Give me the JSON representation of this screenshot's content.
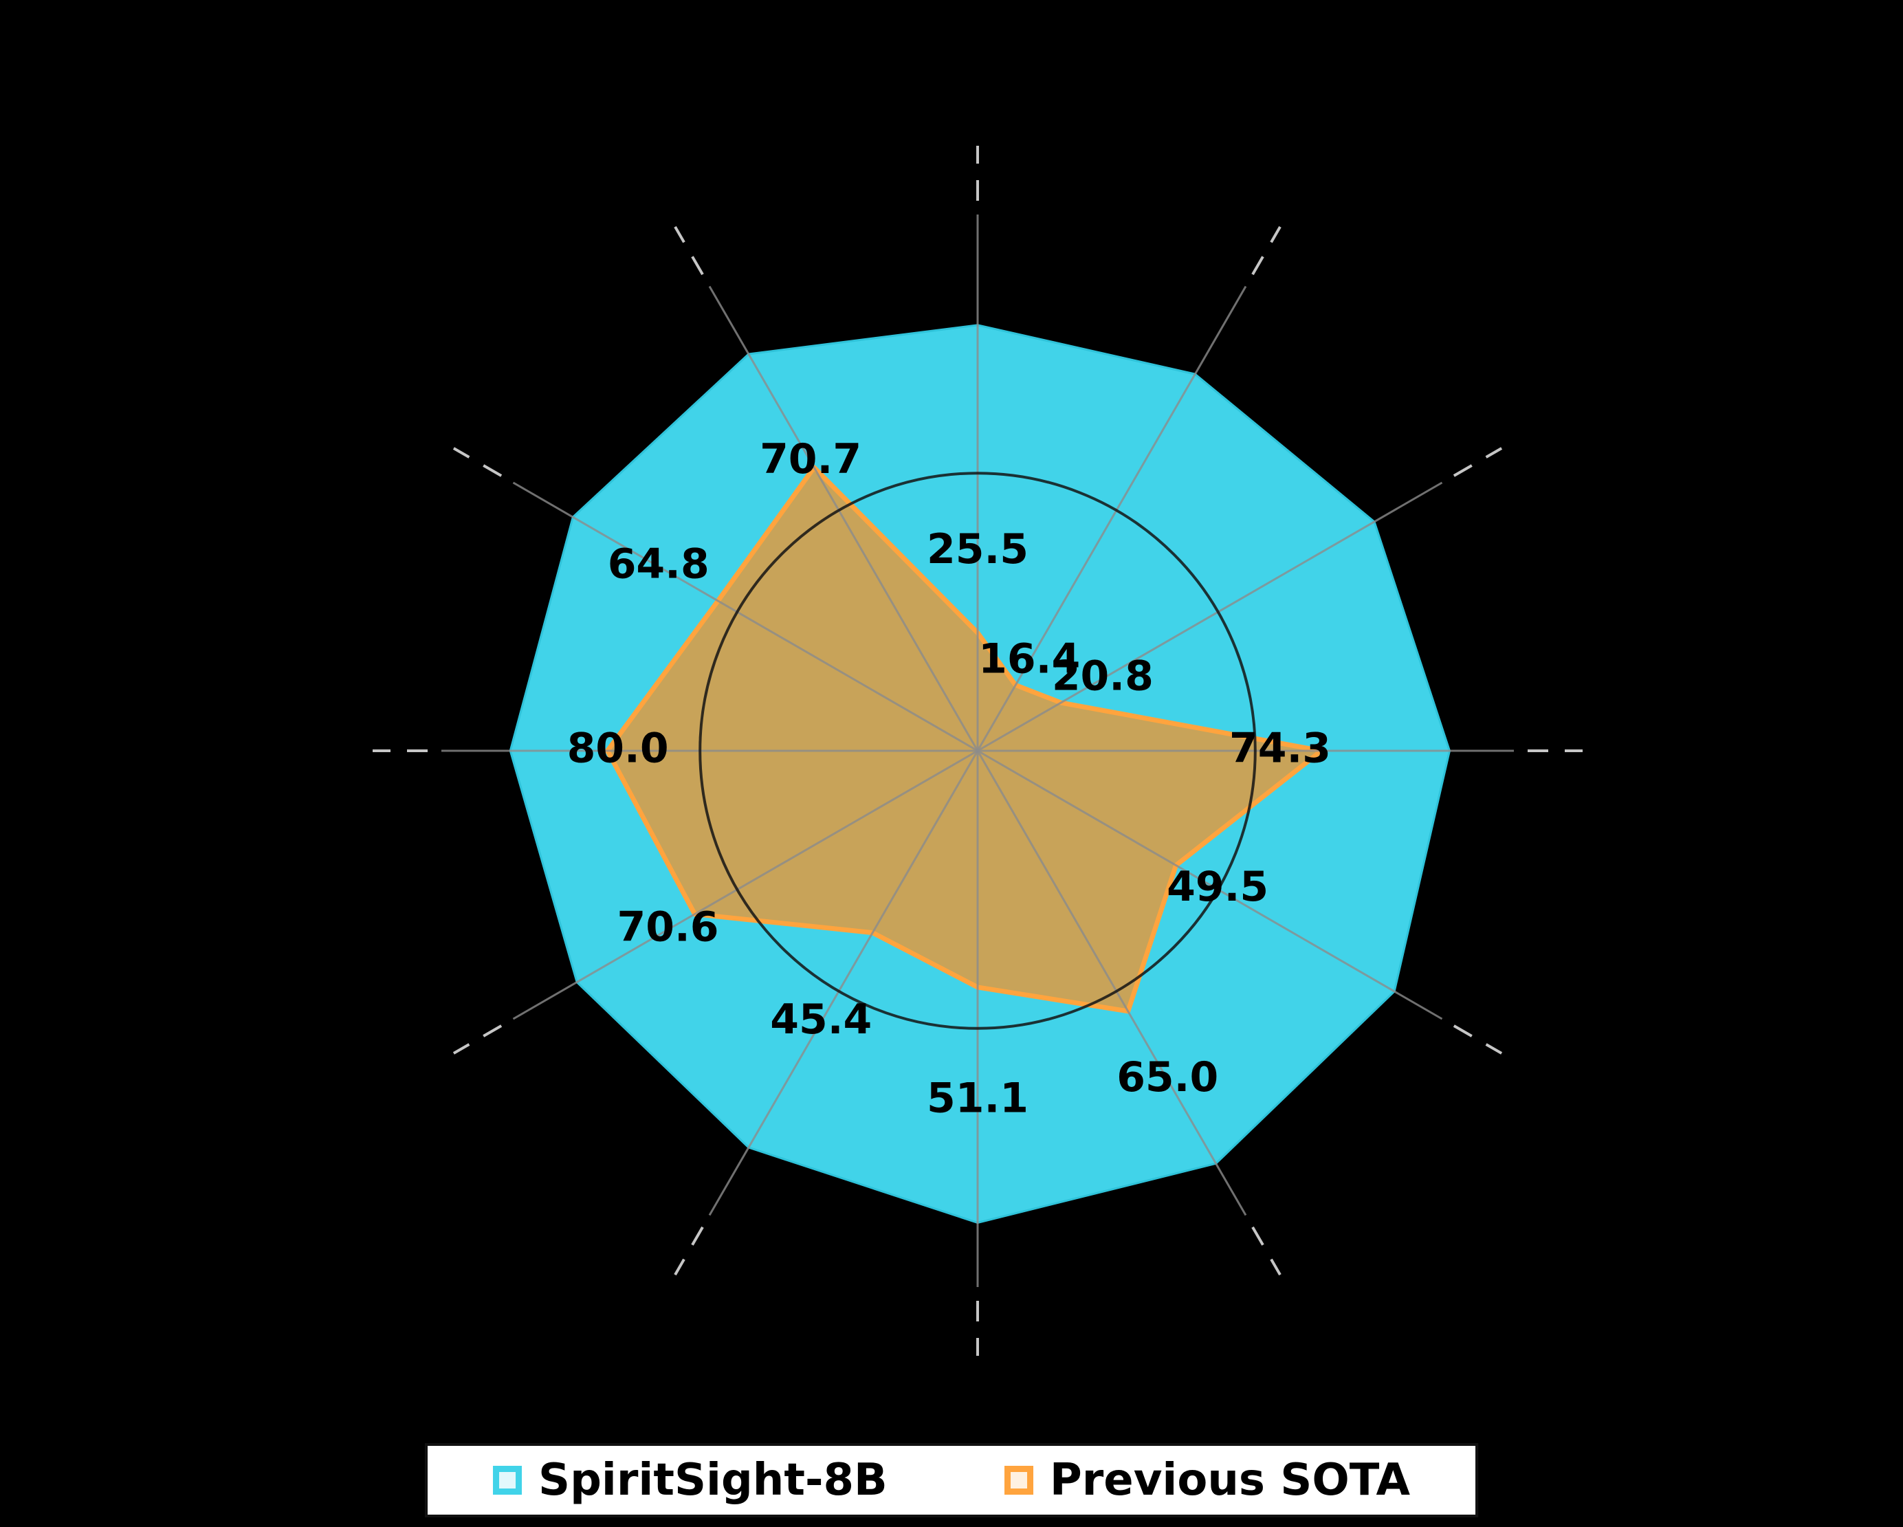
{
  "chart_data": {
    "type": "radar",
    "num_axes": 12,
    "angle_order": "clockwise-from-top",
    "rlim": [
      0,
      110
    ],
    "visible_ring_value": 60,
    "grid": true,
    "axis_tick_labels_visible": false,
    "series": [
      {
        "name": "SpiritSight-8B",
        "color": "#41D3E9",
        "fill": "#41D3E9",
        "estimated": true,
        "values": [
          92,
          94,
          99,
          102,
          104,
          103,
          102,
          99,
          100,
          101,
          101,
          99
        ]
      },
      {
        "name": "Previous SOTA",
        "color": "#FFA43E",
        "fill": "#C8A359",
        "estimated": false,
        "values": [
          25.5,
          16.4,
          20.8,
          74.3,
          49.5,
          65.0,
          51.1,
          45.4,
          70.6,
          80.0,
          64.8,
          70.7
        ]
      }
    ],
    "point_labels": [
      "25.5",
      "16.4",
      "20.8",
      "74.3",
      "49.5",
      "65.0",
      "51.1",
      "45.4",
      "70.6",
      "80.0",
      "64.8",
      "70.7"
    ],
    "legend_position": "bottom-center"
  },
  "legend": {
    "items": [
      {
        "label": "SpiritSight-8B",
        "color": "#41D3E9"
      },
      {
        "label": "Previous SOTA",
        "color": "#FFA43E"
      }
    ]
  },
  "colors": {
    "background": "#000000",
    "spoke": "#8C8C8C",
    "spoke_tip_dash": "#DCDCDC",
    "ring": "#141414",
    "label_text": "#000000",
    "legend_background": "#FFFFFF",
    "legend_border": "#111111"
  }
}
